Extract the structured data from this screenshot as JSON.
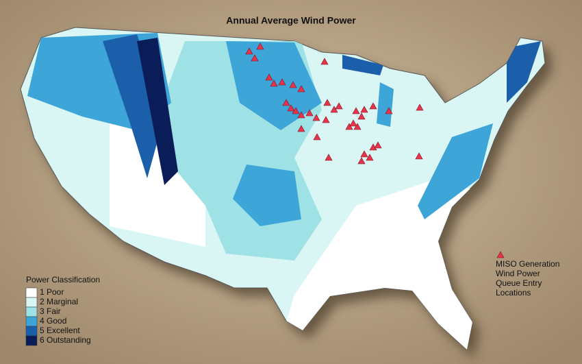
{
  "title": "Annual Average Wind Power",
  "legend": {
    "title": "Power Classification",
    "items": [
      {
        "label": "1 Poor",
        "color": "#ffffff"
      },
      {
        "label": "2 Marginal",
        "color": "#d9f6f4"
      },
      {
        "label": "3 Fair",
        "color": "#9fe2e6"
      },
      {
        "label": "4 Good",
        "color": "#3ea5d8"
      },
      {
        "label": "5 Excellent",
        "color": "#1b5ea9"
      },
      {
        "label": "6 Outstanding",
        "color": "#0a1d58"
      }
    ]
  },
  "annotation": {
    "lines": [
      "MISO Generation",
      "Wind Power",
      "Queue Entry",
      "Locations"
    ],
    "color": "#e8344a"
  }
}
